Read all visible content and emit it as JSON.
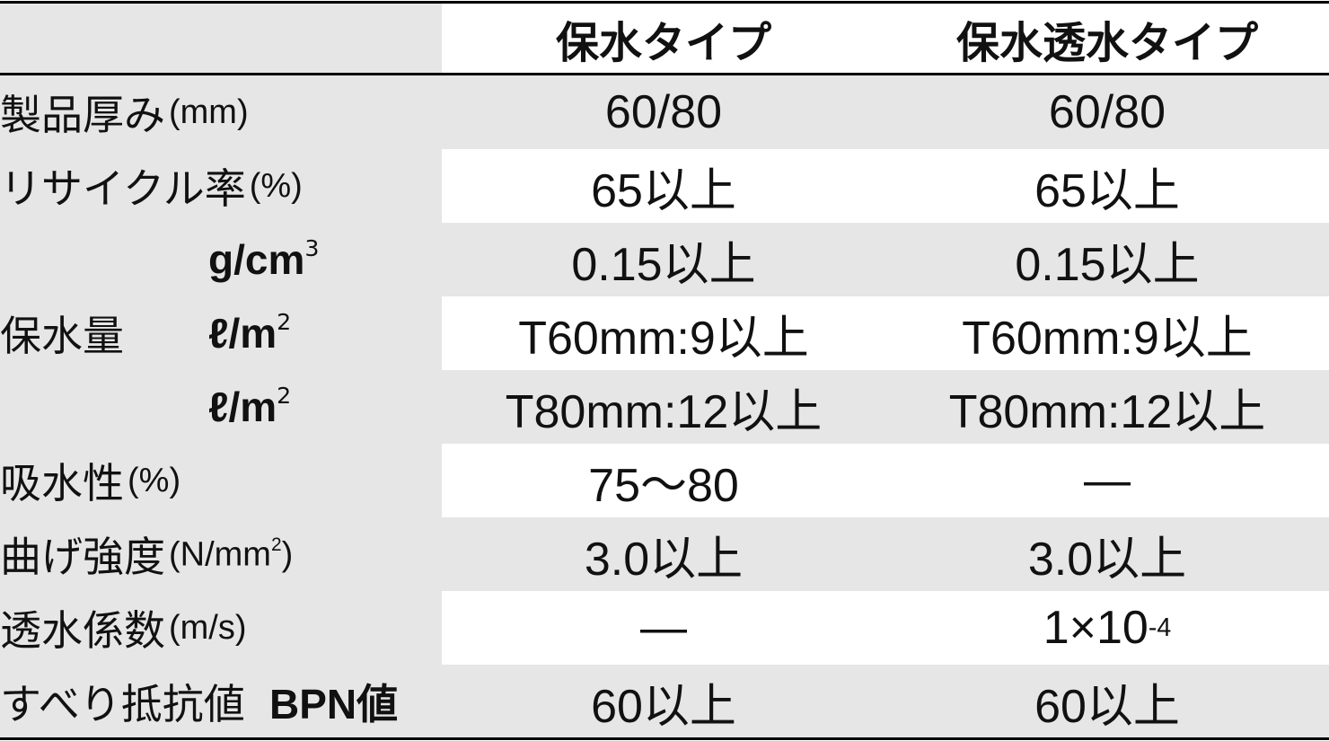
{
  "columns": [
    "",
    "保水タイプ",
    "保水透水タイプ"
  ],
  "rows": [
    {
      "label": "製品厚み",
      "unit": "(mm)",
      "values": [
        "60/80",
        "60/80"
      ]
    },
    {
      "label": "リサイクル率",
      "unit": "(%)",
      "values": [
        "65以上",
        "65以上"
      ]
    },
    {
      "label": "",
      "unit": "g/cm",
      "unit_sup": "3",
      "values": [
        "0.15以上",
        "0.15以上"
      ]
    },
    {
      "label": "保水量",
      "unit": "ℓ/m",
      "unit_sup": "2",
      "values": [
        "T60mm:9以上",
        "T60mm:9以上"
      ]
    },
    {
      "label": "",
      "unit": "ℓ/m",
      "unit_sup": "2",
      "values": [
        "T80mm:12以上",
        "T80mm:12以上"
      ]
    },
    {
      "label": "吸水性",
      "unit": "(%)",
      "values": [
        "75〜80",
        "—"
      ]
    },
    {
      "label": "曲げ強度",
      "unit": "(N/mm",
      "unit_sup": "2",
      "unit_end": ")",
      "values": [
        "3.0以上",
        "3.0以上"
      ]
    },
    {
      "label": "透水係数",
      "unit": "(m/s)",
      "values": [
        "—",
        "1×10"
      ],
      "value_sup": "-4"
    },
    {
      "label": "すべり抵抗値",
      "unit": "BPN値",
      "values": [
        "60以上",
        "60以上"
      ]
    }
  ]
}
